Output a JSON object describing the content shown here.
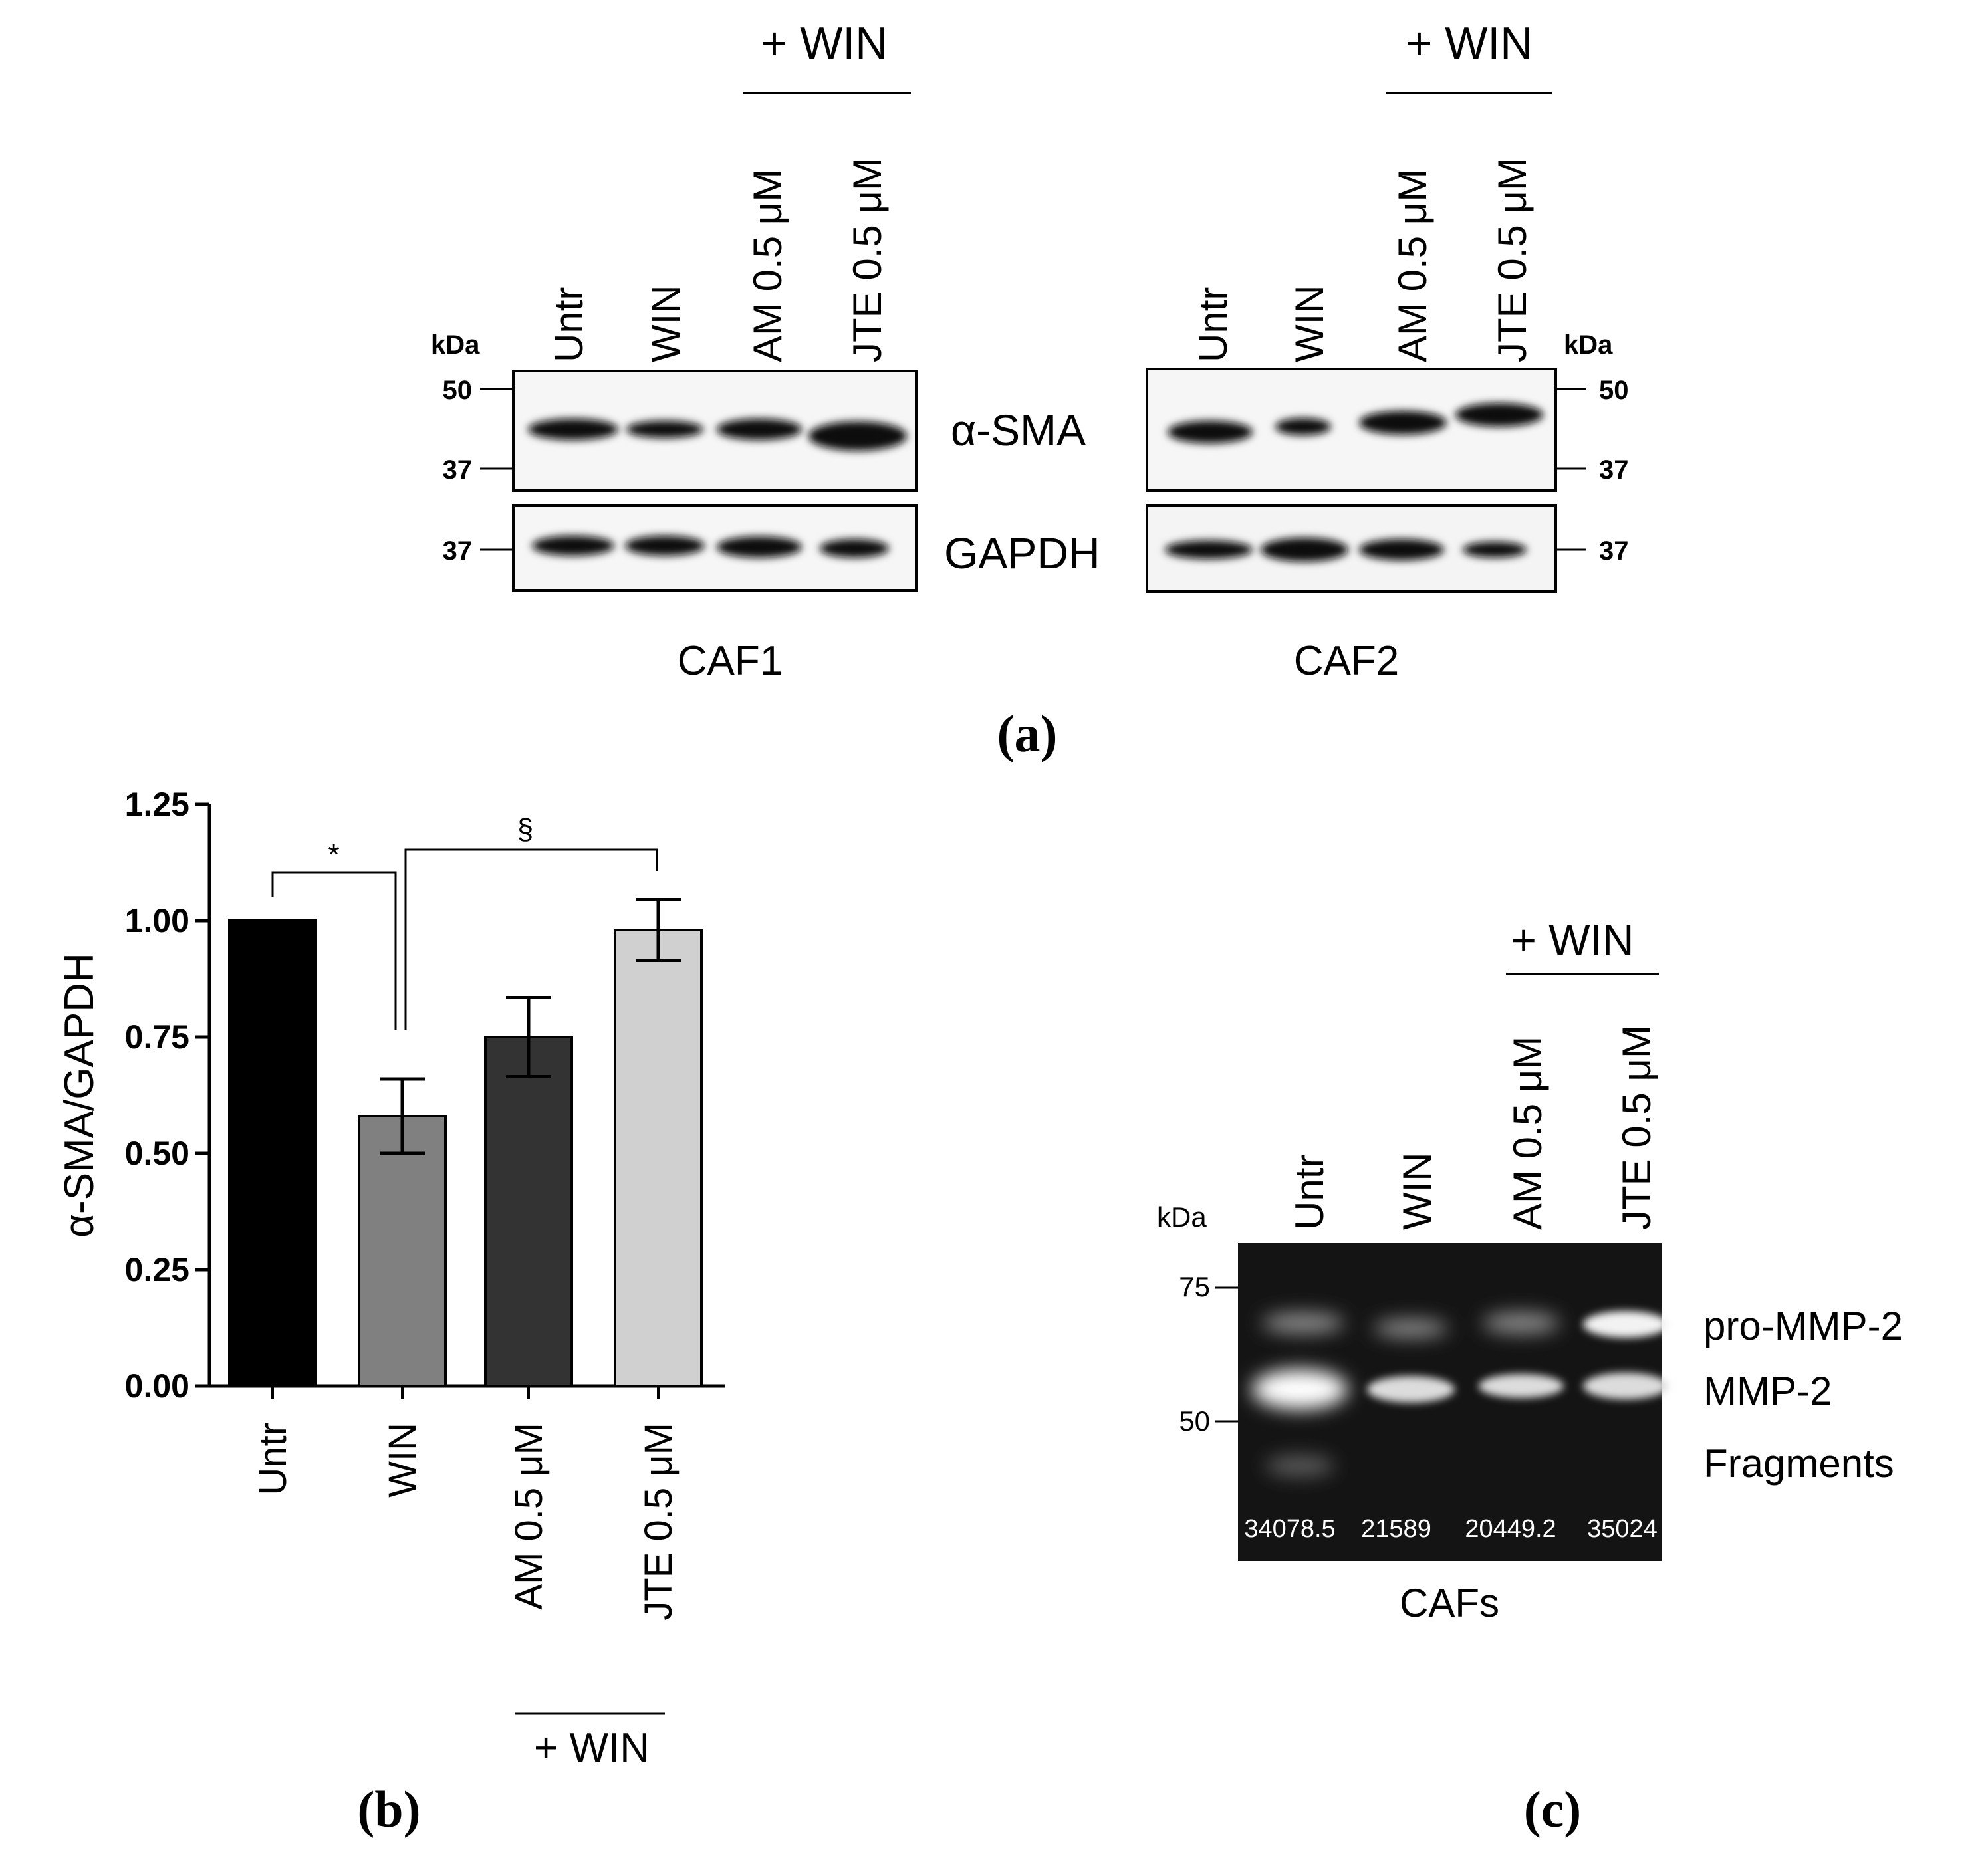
{
  "panel_a": {
    "panel_label": "(a)",
    "caf1": {
      "plus_win": "+ WIN",
      "lanes": [
        "Untr",
        "WIN",
        "AM 0.5 μM",
        "JTE 0.5 μM"
      ],
      "kda_label": "kDa",
      "markers_top": [
        "50",
        "37"
      ],
      "marker_bottom": "37",
      "protein_top": "α-SMA",
      "protein_bottom": "GAPDH",
      "cell_label": "CAF1"
    },
    "caf2": {
      "plus_win": "+ WIN",
      "lanes": [
        "Untr",
        "WIN",
        "AM 0.5 μM",
        "JTE 0.5 μM"
      ],
      "kda_label": "kDa",
      "markers_top": [
        "50",
        "37"
      ],
      "marker_bottom": "37",
      "cell_label": "CAF2"
    }
  },
  "panel_b": {
    "panel_label": "(b)",
    "group_label": "+ WIN",
    "sig_star": "*",
    "sig_section": "§"
  },
  "panel_c": {
    "panel_label": "(c)",
    "plus_win": "+ WIN",
    "lanes": [
      "Untr",
      "WIN",
      "AM 0.5 μM",
      "JTE 0.5 μM"
    ],
    "kda_label": "kDa",
    "markers": [
      "75",
      "50"
    ],
    "band_labels": [
      "pro-MMP-2",
      "MMP-2",
      "Fragments"
    ],
    "densitometry": [
      "34078.5",
      "21589",
      "20449.2",
      "35024"
    ],
    "cell_label": "CAFs"
  },
  "chart_data": {
    "type": "bar",
    "categories": [
      "Untr",
      "WIN",
      "AM 0.5 μM",
      "JTE 0.5 μM"
    ],
    "values": [
      1.0,
      0.58,
      0.75,
      0.98
    ],
    "errors": [
      0.0,
      0.08,
      0.085,
      0.065
    ],
    "bar_colors": [
      "#000000",
      "#808080",
      "#333333",
      "#d0d0d0"
    ],
    "ylabel": "α-SMA/GAPDH",
    "xlabel": "",
    "ylim": [
      0,
      1.25
    ],
    "yticks": [
      "0.00",
      "0.25",
      "0.50",
      "0.75",
      "1.00",
      "1.25"
    ],
    "grid": false
  }
}
